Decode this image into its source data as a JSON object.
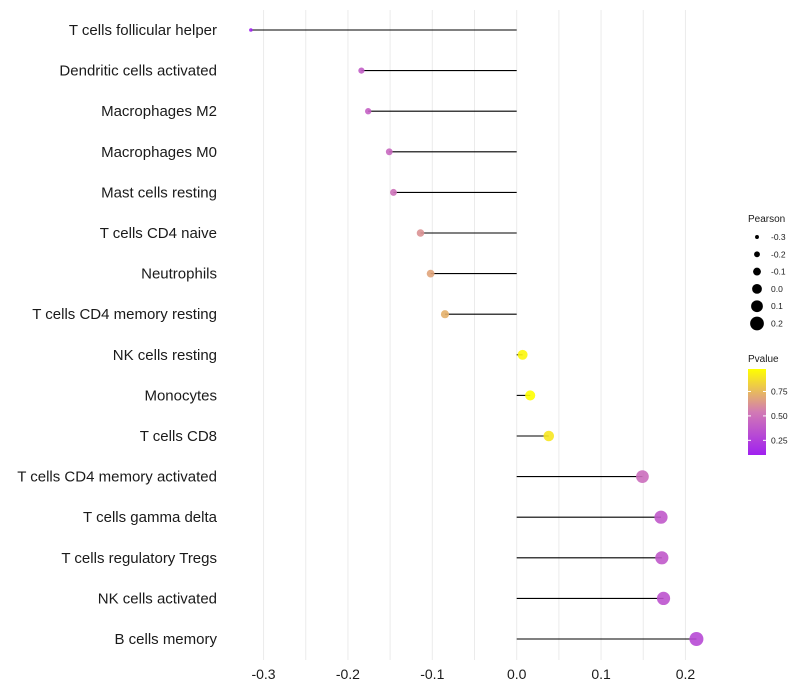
{
  "chart_data": {
    "type": "lollipop",
    "title": "",
    "xlabel": "",
    "ylabel": "",
    "xlim": [
      -0.335,
      0.235
    ],
    "x_ticks": [
      -0.3,
      -0.2,
      -0.1,
      0.0,
      0.1,
      0.2
    ],
    "x_tick_labels": [
      "-0.3",
      "-0.2",
      "-0.1",
      "0.0",
      "0.1",
      "0.2"
    ],
    "grid": true,
    "categories": [
      "T cells follicular helper",
      "Dendritic cells activated",
      "Macrophages M2",
      "Macrophages M0",
      "Mast cells resting",
      "T cells CD4 naive",
      "Neutrophils",
      "T cells CD4 memory resting",
      "NK cells resting",
      "Monocytes",
      "T cells CD8",
      "T cells CD4 memory activated",
      "T cells gamma delta",
      "T cells regulatory  Tregs",
      "NK cells activated",
      "B cells memory"
    ],
    "pearson": [
      -0.315,
      -0.184,
      -0.176,
      -0.151,
      -0.146,
      -0.114,
      -0.102,
      -0.085,
      0.007,
      0.016,
      0.038,
      0.149,
      0.171,
      0.172,
      0.174,
      0.213
    ],
    "pvalue": [
      0.1,
      0.4,
      0.42,
      0.45,
      0.5,
      0.62,
      0.68,
      0.72,
      0.95,
      0.98,
      0.9,
      0.48,
      0.38,
      0.38,
      0.35,
      0.3
    ],
    "size_legend": {
      "title": "Pearson",
      "values": [
        -0.3,
        -0.2,
        -0.1,
        0.0,
        0.1,
        0.2
      ],
      "labels": [
        "-0.3",
        "-0.2",
        "-0.1",
        "0.0",
        "0.1",
        "0.2"
      ]
    },
    "color_legend": {
      "title": "Pvalue",
      "ticks": [
        0.25,
        0.5,
        0.75
      ],
      "tick_labels": [
        "0.25",
        "0.50",
        "0.75"
      ],
      "range": [
        0.1,
        0.98
      ],
      "low_color": "#a020f0",
      "mid_color": "#d27ab4",
      "high_color": "#ffff00"
    },
    "legend_position": "right"
  }
}
